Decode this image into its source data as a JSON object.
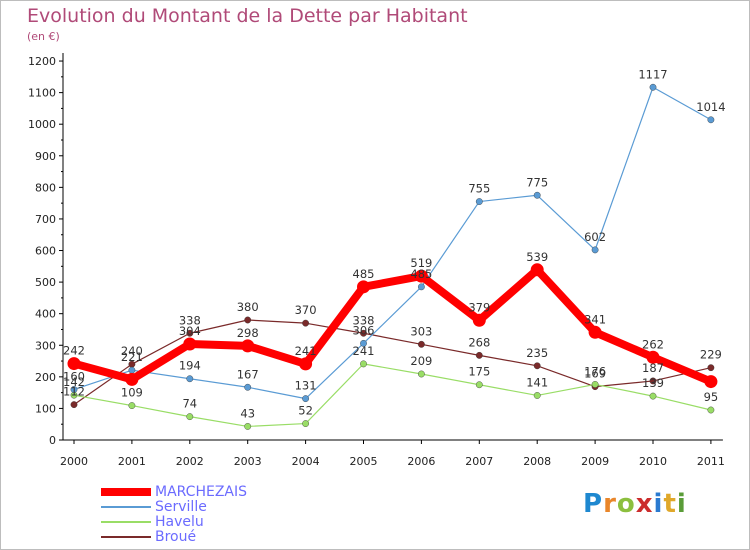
{
  "title": "Evolution du Montant de la Dette par Habitant",
  "unit_label": "(en €)",
  "logo": {
    "text": "Proxiti",
    "letters": [
      "P",
      "r",
      "o",
      "x",
      "i",
      "t",
      "i"
    ],
    "colors": [
      "#1e88d0",
      "#e9862a",
      "#8cbf3f",
      "#cc2d2d",
      "#2a7ad0",
      "#e0a82a",
      "#5a9c38"
    ]
  },
  "chart_data": {
    "type": "line",
    "categories": [
      "2000",
      "2001",
      "2002",
      "2003",
      "2004",
      "2005",
      "2006",
      "2007",
      "2008",
      "2009",
      "2010",
      "2011"
    ],
    "ylim": [
      0,
      1200
    ],
    "yticks": [
      0,
      100,
      200,
      300,
      400,
      500,
      600,
      700,
      800,
      900,
      1000,
      1100,
      1200
    ],
    "grid": false,
    "legend_position": "bottom-left",
    "series": [
      {
        "name": "MARCHEZAIS",
        "color": "#ff0000",
        "values": [
          242,
          192,
          304,
          298,
          241,
          485,
          519,
          379,
          539,
          341,
          262,
          185
        ]
      },
      {
        "name": "Serville",
        "color": "#5a9bd4",
        "values": [
          160,
          221,
          194,
          167,
          131,
          306,
          485,
          755,
          775,
          602,
          1117,
          1014
        ]
      },
      {
        "name": "Havelu",
        "color": "#99dd66",
        "values": [
          142,
          109,
          74,
          43,
          52,
          241,
          209,
          175,
          141,
          176,
          139,
          95
        ]
      },
      {
        "name": "Broué",
        "color": "#7a2a2a",
        "values": [
          112,
          240,
          338,
          380,
          370,
          338,
          303,
          268,
          235,
          169,
          187,
          229
        ]
      }
    ],
    "value_labels": {
      "MARCHEZAIS": [
        "242",
        "",
        "304",
        "298",
        "241",
        "485",
        "519",
        "379",
        "539",
        "341",
        "262",
        ""
      ],
      "Serville": [
        "160",
        "221",
        "194",
        "167",
        "131",
        "306",
        "485",
        "755",
        "775",
        "602",
        "1117",
        "1014"
      ],
      "Havelu": [
        "142",
        "109",
        "74",
        "43",
        "52",
        "241",
        "209",
        "175",
        "141",
        "176",
        "139",
        "95"
      ],
      "Broué": [
        "112",
        "240",
        "338",
        "380",
        "370",
        "338",
        "303",
        "268",
        "235",
        "169",
        "187",
        "229"
      ]
    }
  }
}
